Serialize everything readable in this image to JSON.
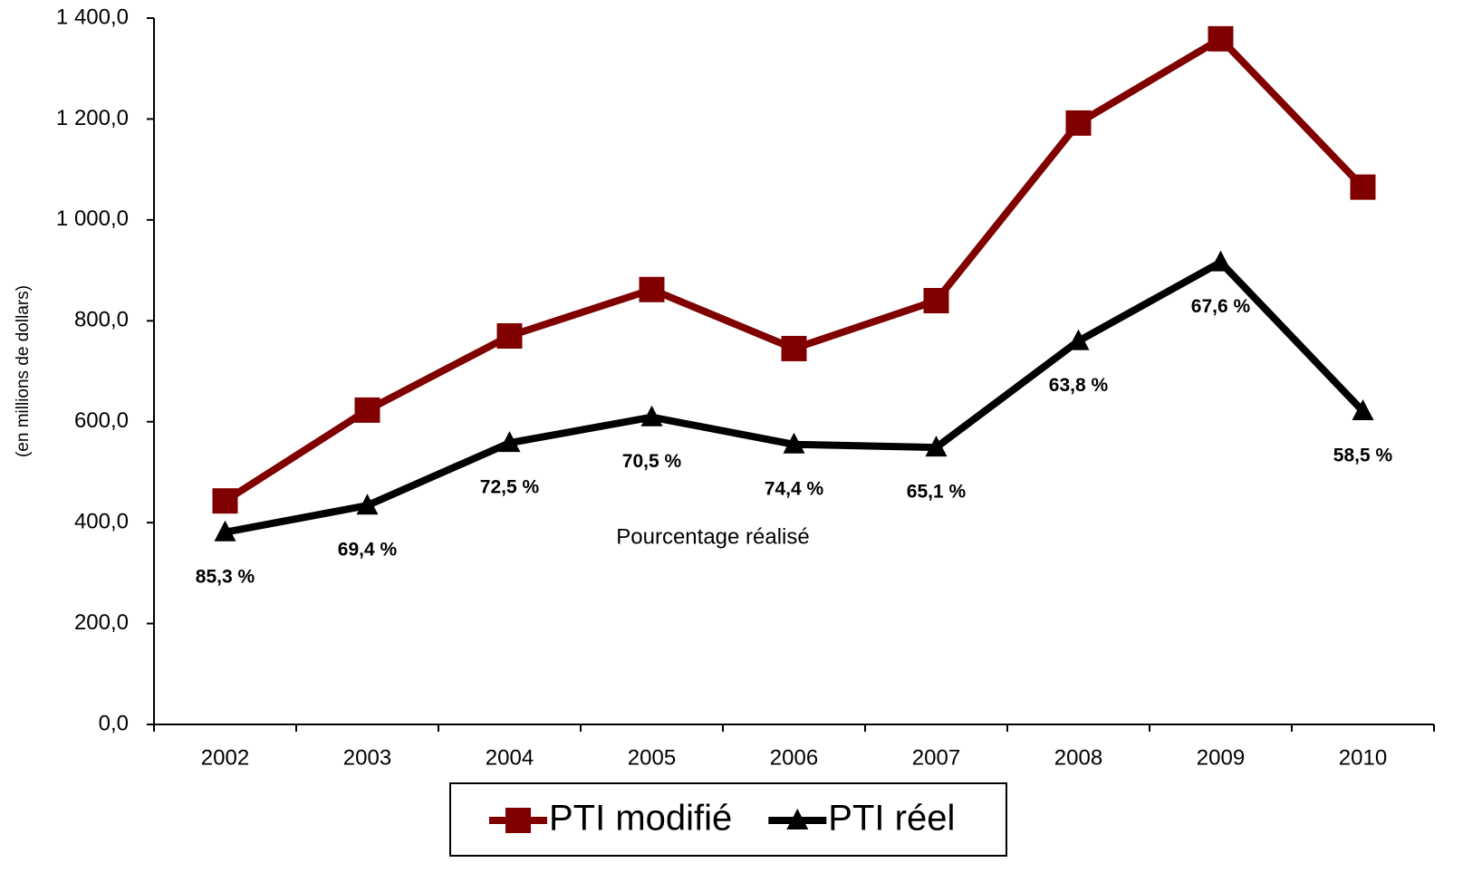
{
  "chart_data": {
    "type": "line",
    "y_axis_label": "(en millions de dollars)",
    "categories": [
      "2002",
      "2003",
      "2004",
      "2005",
      "2006",
      "2007",
      "2008",
      "2009",
      "2010"
    ],
    "series": [
      {
        "name": "PTI modifié",
        "color": "#800000",
        "marker": "square",
        "values": [
          443,
          623,
          770,
          862,
          745,
          840,
          1192,
          1359,
          1065
        ]
      },
      {
        "name": "PTI réel",
        "color": "#000000",
        "marker": "triangle",
        "values": [
          381,
          434,
          558,
          609,
          555,
          549,
          760,
          916,
          621
        ]
      }
    ],
    "annotation": "Pourcentage réalisé",
    "realized_percent": {
      "values": [
        85.3,
        69.4,
        72.5,
        70.5,
        74.4,
        65.1,
        63.8,
        67.6,
        58.5
      ],
      "value_labels": [
        "85,3 %",
        "69,4 %",
        "72,5 %",
        "70,5 %",
        "74,4 %",
        "65,1 %",
        "63,8 %",
        "67,6 %",
        "58,5 %"
      ]
    },
    "ylim": [
      0,
      1400
    ],
    "yticks": [
      {
        "value": 0,
        "label": "0,0"
      },
      {
        "value": 200,
        "label": "200,0"
      },
      {
        "value": 400,
        "label": "400,0"
      },
      {
        "value": 600,
        "label": "600,0"
      },
      {
        "value": 800,
        "label": "800,0"
      },
      {
        "value": 1000,
        "label": "1 000,0"
      },
      {
        "value": 1200,
        "label": "1 200,0"
      },
      {
        "value": 1400,
        "label": "1 400,0"
      }
    ],
    "grid": false,
    "legend": "bottom"
  }
}
